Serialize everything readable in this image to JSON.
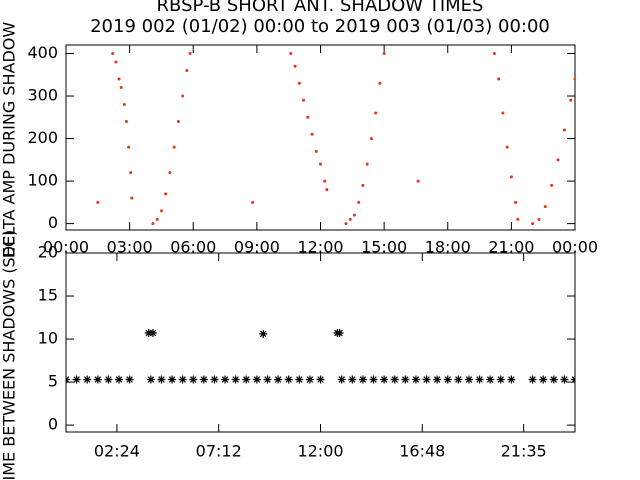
{
  "chart_data": [
    {
      "type": "scatter",
      "title": "RBSP-B SHORT ANT. SHADOW TIMES",
      "subtitle": "2019 002 (01/02) 00:00 to 2019 003 (01/03) 00:00",
      "y_label": "DELTA AMP DURING SHADOW",
      "marker": "dot",
      "color": "#e8321e",
      "xlim": [
        0,
        24
      ],
      "ylim": [
        -15,
        420
      ],
      "xticks": [
        {
          "value": 0,
          "label": "00:00"
        },
        {
          "value": 3,
          "label": "03:00"
        },
        {
          "value": 6,
          "label": "06:00"
        },
        {
          "value": 9,
          "label": "09:00"
        },
        {
          "value": 12,
          "label": "12:00"
        },
        {
          "value": 15,
          "label": "15:00"
        },
        {
          "value": 18,
          "label": "18:00"
        },
        {
          "value": 21,
          "label": "21:00"
        },
        {
          "value": 24,
          "label": "00:00"
        }
      ],
      "yticks": [
        0,
        100,
        200,
        300,
        400
      ],
      "x": [
        2.2,
        2.35,
        2.5,
        2.6,
        2.75,
        2.85,
        2.95,
        3.05,
        3.1,
        4.1,
        4.3,
        4.5,
        4.7,
        4.9,
        5.1,
        5.3,
        5.5,
        5.7,
        5.85,
        10.6,
        10.8,
        11.0,
        11.2,
        11.4,
        11.6,
        11.8,
        12.0,
        12.2,
        12.3,
        13.2,
        13.4,
        13.6,
        13.8,
        14.0,
        14.2,
        14.4,
        14.6,
        14.8,
        15.0,
        20.2,
        20.4,
        20.6,
        20.8,
        21.0,
        21.2,
        21.3,
        22.0,
        22.3,
        22.6,
        22.9,
        23.2,
        23.5,
        23.8,
        24.0,
        1.5,
        8.8,
        16.6
      ],
      "values": [
        400,
        380,
        340,
        320,
        280,
        240,
        180,
        120,
        60,
        0,
        10,
        30,
        70,
        120,
        180,
        240,
        300,
        360,
        400,
        400,
        370,
        330,
        290,
        250,
        210,
        170,
        140,
        100,
        80,
        0,
        10,
        20,
        50,
        90,
        140,
        200,
        260,
        330,
        400,
        400,
        340,
        260,
        180,
        110,
        50,
        10,
        0,
        10,
        40,
        90,
        150,
        220,
        290,
        340,
        50,
        50,
        100
      ]
    },
    {
      "type": "scatter",
      "y_label": "TIME BETWEEN SHADOWS (SEC)",
      "marker": "asterisk",
      "color": "#000000",
      "xlim": [
        0,
        24
      ],
      "ylim": [
        -0.8,
        20
      ],
      "xticks": [
        {
          "value": 2.4,
          "label": "02:24"
        },
        {
          "value": 7.2,
          "label": "07:12"
        },
        {
          "value": 12,
          "label": "12:00"
        },
        {
          "value": 16.8,
          "label": "16:48"
        },
        {
          "value": 21.58,
          "label": "21:35"
        }
      ],
      "yticks": [
        0,
        5,
        10,
        15,
        20
      ],
      "x": [
        0,
        0.5,
        1,
        1.5,
        2,
        2.5,
        3,
        4,
        4.5,
        5,
        5.5,
        6,
        6.5,
        7,
        7.5,
        8,
        8.5,
        9,
        9.5,
        10,
        10.5,
        11,
        11.5,
        12,
        13,
        13.5,
        14,
        14.5,
        15,
        15.5,
        16,
        16.5,
        17,
        17.5,
        18,
        18.5,
        19,
        19.5,
        20,
        20.5,
        21,
        22,
        22.5,
        23,
        23.5,
        24,
        3.9,
        4.1,
        9.3,
        12.8,
        12.9
      ],
      "values": [
        5.3,
        5.3,
        5.3,
        5.3,
        5.3,
        5.3,
        5.3,
        5.3,
        5.3,
        5.3,
        5.3,
        5.3,
        5.3,
        5.3,
        5.3,
        5.3,
        5.3,
        5.3,
        5.3,
        5.3,
        5.3,
        5.3,
        5.3,
        5.3,
        5.3,
        5.3,
        5.3,
        5.3,
        5.3,
        5.3,
        5.3,
        5.3,
        5.3,
        5.3,
        5.3,
        5.3,
        5.3,
        5.3,
        5.3,
        5.3,
        5.3,
        5.3,
        5.3,
        5.3,
        5.3,
        5.3,
        10.7,
        10.7,
        10.6,
        10.7,
        10.7
      ]
    }
  ]
}
